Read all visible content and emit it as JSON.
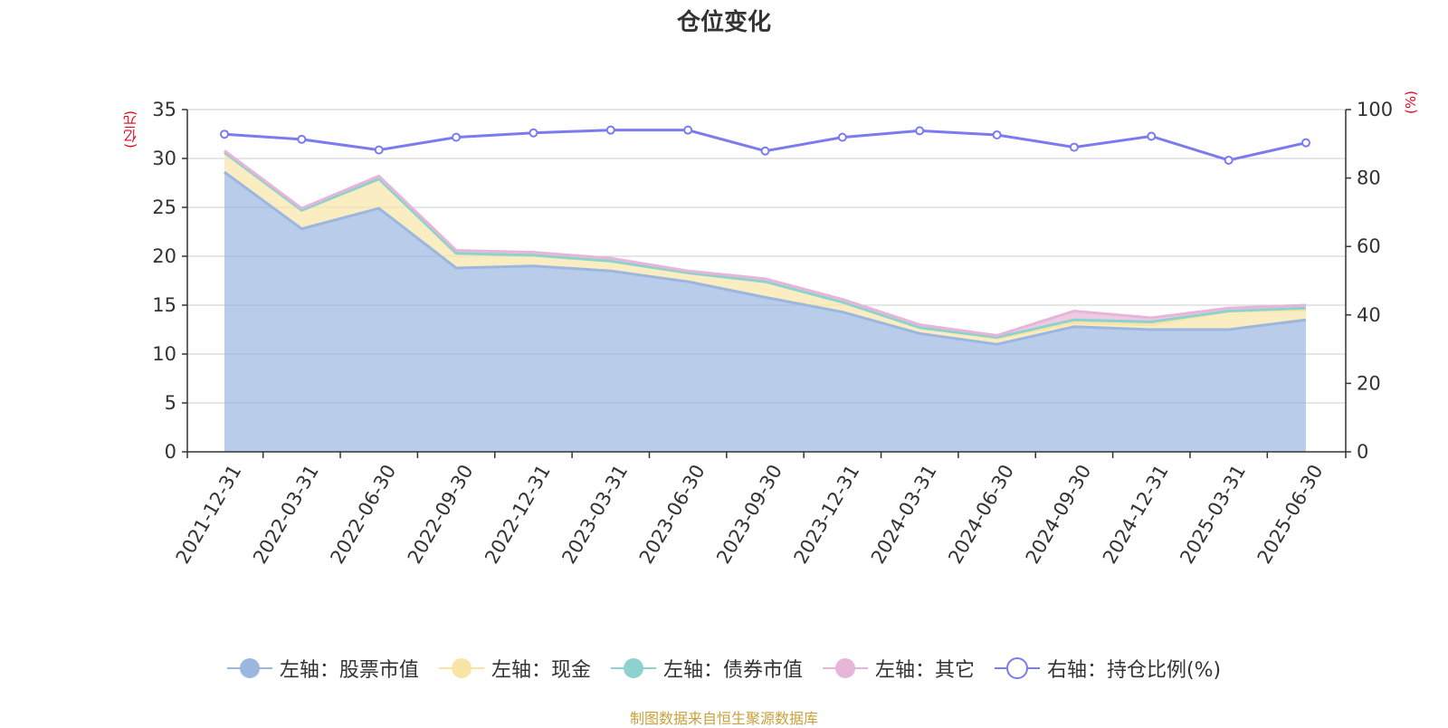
{
  "title": "仓位变化",
  "left_unit": "(亿元)",
  "right_unit": "(%)",
  "footer": "制图数据来自恒生聚源数据库",
  "chart_data": {
    "type": "area",
    "categories": [
      "2021-12-31",
      "2022-03-31",
      "2022-06-30",
      "2022-09-30",
      "2022-12-31",
      "2023-03-31",
      "2023-06-30",
      "2023-09-30",
      "2023-12-31",
      "2024-03-31",
      "2024-06-30",
      "2024-09-30",
      "2024-12-31",
      "2025-03-31",
      "2025-06-30"
    ],
    "left_axis": {
      "ylim": [
        0,
        35
      ],
      "ticks": [
        0,
        5,
        10,
        15,
        20,
        25,
        30,
        35
      ]
    },
    "right_axis": {
      "ylim": [
        0,
        100
      ],
      "ticks": [
        0,
        20,
        40,
        60,
        80,
        100
      ]
    },
    "grid": true,
    "legend_position": "bottom",
    "stacked": true,
    "series": [
      {
        "name": "左轴：股票市值",
        "axis": "left",
        "color": "#9bb7e0",
        "values": [
          28.6,
          22.8,
          24.9,
          18.8,
          19.0,
          18.5,
          17.4,
          15.8,
          14.3,
          12.1,
          11.0,
          12.8,
          12.5,
          12.5,
          13.5
        ]
      },
      {
        "name": "左轴：现金",
        "axis": "left",
        "color": "#f8e5a6",
        "values": [
          2.0,
          1.9,
          3.0,
          1.5,
          1.1,
          1.0,
          0.9,
          1.6,
          1.0,
          0.6,
          0.6,
          0.4,
          0.5,
          1.9,
          1.0
        ]
      },
      {
        "name": "左轴：债券市值",
        "axis": "left",
        "color": "#8ed2cf",
        "values": [
          0.0,
          0.0,
          0.0,
          0.0,
          0.0,
          0.0,
          0.0,
          0.0,
          0.0,
          0.0,
          0.1,
          0.3,
          0.3,
          0.0,
          0.2
        ]
      },
      {
        "name": "左轴：其它",
        "axis": "left",
        "color": "#e6b5d8",
        "values": [
          0.2,
          0.2,
          0.3,
          0.3,
          0.3,
          0.3,
          0.2,
          0.3,
          0.3,
          0.3,
          0.2,
          0.9,
          0.4,
          0.3,
          0.3
        ]
      },
      {
        "name": "右轴：持仓比例(%)",
        "axis": "right",
        "color": "#7b7bf0",
        "values": [
          92.8,
          91.3,
          88.2,
          91.9,
          93.2,
          94.0,
          94.0,
          87.9,
          91.9,
          93.8,
          92.6,
          89.0,
          92.2,
          85.2,
          90.3
        ]
      }
    ]
  }
}
